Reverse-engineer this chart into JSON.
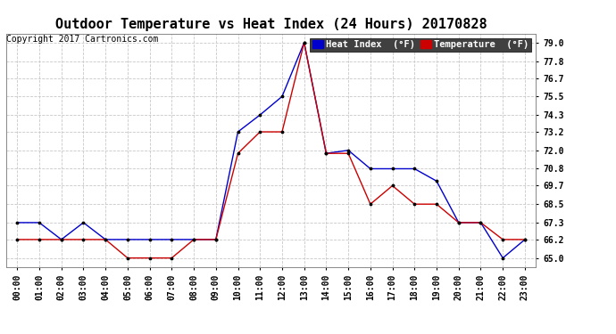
{
  "title": "Outdoor Temperature vs Heat Index (24 Hours) 20170828",
  "copyright": "Copyright 2017 Cartronics.com",
  "background_color": "#ffffff",
  "plot_bg_color": "#ffffff",
  "grid_color": "#c8c8c8",
  "x_labels": [
    "00:00",
    "01:00",
    "02:00",
    "03:00",
    "04:00",
    "05:00",
    "06:00",
    "07:00",
    "08:00",
    "09:00",
    "10:00",
    "11:00",
    "12:00",
    "13:00",
    "14:00",
    "15:00",
    "16:00",
    "17:00",
    "18:00",
    "19:00",
    "20:00",
    "21:00",
    "22:00",
    "23:00"
  ],
  "yticks": [
    65.0,
    66.2,
    67.3,
    68.5,
    69.7,
    70.8,
    72.0,
    73.2,
    74.3,
    75.5,
    76.7,
    77.8,
    79.0
  ],
  "ylim": [
    64.4,
    79.6
  ],
  "heat_index": [
    67.3,
    67.3,
    66.2,
    67.3,
    66.2,
    66.2,
    66.2,
    66.2,
    66.2,
    66.2,
    73.2,
    74.3,
    75.5,
    79.0,
    71.8,
    72.0,
    70.8,
    70.8,
    70.8,
    70.0,
    67.3,
    67.3,
    65.0,
    66.2
  ],
  "temperature": [
    66.2,
    66.2,
    66.2,
    66.2,
    66.2,
    65.0,
    65.0,
    65.0,
    66.2,
    66.2,
    71.8,
    73.2,
    73.2,
    79.0,
    71.8,
    71.8,
    68.5,
    69.7,
    68.5,
    68.5,
    67.3,
    67.3,
    66.2,
    66.2
  ],
  "heat_index_color": "#0000cc",
  "temperature_color": "#cc0000",
  "heat_index_label": "Heat Index  (°F)",
  "temperature_label": "Temperature  (°F)",
  "title_fontsize": 11,
  "tick_fontsize": 7,
  "legend_fontsize": 7.5,
  "copyright_fontsize": 7
}
